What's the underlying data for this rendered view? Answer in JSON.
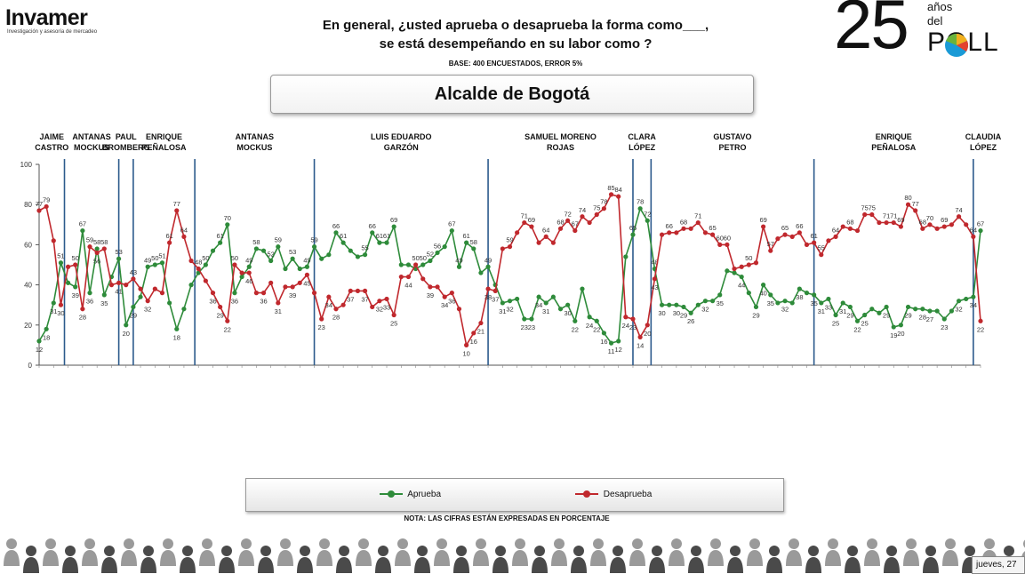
{
  "header": {
    "logo_text": "Invamer",
    "logo_tagline": "Investigación y asesoría de mercadeo",
    "title_line1": "En general, ¿usted aprueba o desaprueba la forma como___,",
    "title_line2": "se está desempeñando en su labor como ?",
    "base": "BASE: 400 ENCUESTADOS, ERROR 5%",
    "subject": "Alcalde de Bogotá",
    "anniversary_number": "25",
    "anniversary_word1": "años",
    "anniversary_word2": "del",
    "anniversary_word3": "POLL"
  },
  "mayors": [
    {
      "name": "JAIME\nCASTRO",
      "start": 0
    },
    {
      "name": "ANTANAS\nMOCKUS",
      "start": 7
    },
    {
      "name": "PAUL\nBROMBERG",
      "start": 22
    },
    {
      "name": "ENRIQUE\nPEÑALOSA",
      "start": 26
    },
    {
      "name": "ANTANAS\nMOCKUS",
      "start": 43
    },
    {
      "name": "LUIS EDUARDO\nGARZÓN",
      "start": 76
    },
    {
      "name": "SAMUEL MORENO\nROJAS",
      "start": 124
    },
    {
      "name": "CLARA\nLÓPEZ",
      "start": 164
    },
    {
      "name": "GUSTAVO\nPETRO",
      "start": 169
    },
    {
      "name": "ENRIQUE\nPEÑALOSA",
      "start": 214
    },
    {
      "name": "CLAUDIA\nLÓPEZ",
      "start": 258
    }
  ],
  "chart_data": {
    "type": "line",
    "ylim": [
      0,
      100
    ],
    "yticks": [
      0,
      20,
      40,
      60,
      80,
      100
    ],
    "x_count": 260,
    "series": [
      {
        "name": "Aprueba",
        "color": "#2e8b3a",
        "points": [
          [
            0,
            12
          ],
          [
            2,
            18
          ],
          [
            4,
            31
          ],
          [
            6,
            51
          ],
          [
            8,
            41
          ],
          [
            10,
            39
          ],
          [
            12,
            67
          ],
          [
            14,
            36
          ],
          [
            16,
            58
          ],
          [
            18,
            35
          ],
          [
            20,
            44
          ],
          [
            22,
            53
          ],
          [
            24,
            20
          ],
          [
            26,
            29
          ],
          [
            28,
            34
          ],
          [
            30,
            49
          ],
          [
            32,
            50
          ],
          [
            34,
            51
          ],
          [
            36,
            31
          ],
          [
            38,
            18
          ],
          [
            40,
            28
          ],
          [
            42,
            40
          ],
          [
            44,
            46
          ],
          [
            46,
            50
          ],
          [
            48,
            57
          ],
          [
            50,
            61
          ],
          [
            52,
            70
          ],
          [
            54,
            36
          ],
          [
            56,
            44
          ],
          [
            58,
            49
          ],
          [
            60,
            58
          ],
          [
            62,
            57
          ],
          [
            64,
            52
          ],
          [
            66,
            59
          ],
          [
            68,
            48
          ],
          [
            70,
            53
          ],
          [
            72,
            48
          ],
          [
            74,
            49
          ],
          [
            76,
            59
          ],
          [
            78,
            53
          ],
          [
            80,
            55
          ],
          [
            82,
            66
          ],
          [
            84,
            61
          ],
          [
            86,
            57
          ],
          [
            88,
            54
          ],
          [
            90,
            55
          ],
          [
            92,
            66
          ],
          [
            94,
            61
          ],
          [
            96,
            61
          ],
          [
            98,
            69
          ],
          [
            100,
            50
          ],
          [
            102,
            50
          ],
          [
            104,
            48
          ],
          [
            106,
            50
          ],
          [
            108,
            52
          ],
          [
            110,
            56
          ],
          [
            112,
            59
          ],
          [
            114,
            67
          ],
          [
            116,
            49
          ],
          [
            118,
            61
          ],
          [
            120,
            58
          ],
          [
            122,
            46
          ],
          [
            124,
            49
          ],
          [
            126,
            40
          ],
          [
            128,
            31
          ],
          [
            130,
            32
          ],
          [
            132,
            33
          ],
          [
            134,
            23
          ],
          [
            136,
            23
          ],
          [
            138,
            34
          ],
          [
            140,
            31
          ],
          [
            142,
            34
          ],
          [
            144,
            28
          ],
          [
            146,
            30
          ],
          [
            148,
            22
          ],
          [
            150,
            38
          ],
          [
            152,
            24
          ],
          [
            154,
            22
          ],
          [
            156,
            16
          ],
          [
            158,
            11
          ],
          [
            160,
            12
          ],
          [
            162,
            54
          ],
          [
            164,
            65
          ],
          [
            166,
            78
          ],
          [
            168,
            72
          ],
          [
            170,
            48
          ],
          [
            172,
            30
          ],
          [
            174,
            30
          ],
          [
            176,
            30
          ],
          [
            178,
            29
          ],
          [
            180,
            26
          ],
          [
            182,
            30
          ],
          [
            184,
            32
          ],
          [
            186,
            32
          ],
          [
            188,
            35
          ],
          [
            190,
            47
          ],
          [
            192,
            46
          ],
          [
            194,
            44
          ],
          [
            196,
            36
          ],
          [
            198,
            29
          ],
          [
            200,
            40
          ],
          [
            202,
            35
          ],
          [
            204,
            31
          ],
          [
            206,
            32
          ],
          [
            208,
            31
          ],
          [
            210,
            38
          ],
          [
            212,
            36
          ],
          [
            214,
            35
          ],
          [
            216,
            31
          ],
          [
            218,
            33
          ],
          [
            220,
            25
          ],
          [
            222,
            31
          ],
          [
            224,
            29
          ],
          [
            226,
            22
          ],
          [
            228,
            25
          ],
          [
            230,
            28
          ],
          [
            232,
            26
          ],
          [
            234,
            29
          ],
          [
            236,
            19
          ],
          [
            238,
            20
          ],
          [
            240,
            29
          ],
          [
            242,
            28
          ],
          [
            244,
            28
          ],
          [
            246,
            27
          ],
          [
            248,
            27
          ],
          [
            250,
            23
          ],
          [
            252,
            27
          ],
          [
            254,
            32
          ],
          [
            256,
            33
          ],
          [
            258,
            34
          ],
          [
            260,
            67
          ]
        ]
      },
      {
        "name": "Desaprueba",
        "color": "#c0282d",
        "points": [
          [
            0,
            77
          ],
          [
            2,
            79
          ],
          [
            4,
            62
          ],
          [
            6,
            30
          ],
          [
            8,
            49
          ],
          [
            10,
            50
          ],
          [
            12,
            28
          ],
          [
            14,
            59
          ],
          [
            16,
            56
          ],
          [
            18,
            58
          ],
          [
            20,
            40
          ],
          [
            22,
            41
          ],
          [
            24,
            40
          ],
          [
            26,
            43
          ],
          [
            28,
            38
          ],
          [
            30,
            32
          ],
          [
            32,
            38
          ],
          [
            34,
            36
          ],
          [
            36,
            61
          ],
          [
            38,
            77
          ],
          [
            40,
            64
          ],
          [
            42,
            52
          ],
          [
            44,
            48
          ],
          [
            46,
            42
          ],
          [
            48,
            36
          ],
          [
            50,
            29
          ],
          [
            52,
            22
          ],
          [
            54,
            50
          ],
          [
            56,
            46
          ],
          [
            58,
            46
          ],
          [
            60,
            36
          ],
          [
            62,
            36
          ],
          [
            64,
            41
          ],
          [
            66,
            31
          ],
          [
            68,
            39
          ],
          [
            70,
            39
          ],
          [
            72,
            41
          ],
          [
            74,
            45
          ],
          [
            76,
            36
          ],
          [
            78,
            23
          ],
          [
            80,
            34
          ],
          [
            82,
            28
          ],
          [
            84,
            30
          ],
          [
            86,
            37
          ],
          [
            88,
            37
          ],
          [
            90,
            37
          ],
          [
            92,
            29
          ],
          [
            94,
            32
          ],
          [
            96,
            33
          ],
          [
            98,
            25
          ],
          [
            100,
            44
          ],
          [
            102,
            44
          ],
          [
            104,
            50
          ],
          [
            106,
            43
          ],
          [
            108,
            39
          ],
          [
            110,
            39
          ],
          [
            112,
            34
          ],
          [
            114,
            36
          ],
          [
            116,
            28
          ],
          [
            118,
            10
          ],
          [
            120,
            16
          ],
          [
            122,
            21
          ],
          [
            124,
            38
          ],
          [
            126,
            37
          ],
          [
            128,
            58
          ],
          [
            130,
            59
          ],
          [
            132,
            66
          ],
          [
            134,
            71
          ],
          [
            136,
            69
          ],
          [
            138,
            61
          ],
          [
            140,
            64
          ],
          [
            142,
            61
          ],
          [
            144,
            68
          ],
          [
            146,
            72
          ],
          [
            148,
            67
          ],
          [
            150,
            74
          ],
          [
            152,
            71
          ],
          [
            154,
            75
          ],
          [
            156,
            78
          ],
          [
            158,
            85
          ],
          [
            160,
            84
          ],
          [
            162,
            24
          ],
          [
            164,
            23
          ],
          [
            166,
            14
          ],
          [
            168,
            20
          ],
          [
            170,
            43
          ],
          [
            172,
            65
          ],
          [
            174,
            66
          ],
          [
            176,
            66
          ],
          [
            178,
            68
          ],
          [
            180,
            68
          ],
          [
            182,
            71
          ],
          [
            184,
            66
          ],
          [
            186,
            65
          ],
          [
            188,
            60
          ],
          [
            190,
            60
          ],
          [
            192,
            48
          ],
          [
            194,
            49
          ],
          [
            196,
            50
          ],
          [
            198,
            51
          ],
          [
            200,
            69
          ],
          [
            202,
            57
          ],
          [
            204,
            63
          ],
          [
            206,
            65
          ],
          [
            208,
            64
          ],
          [
            210,
            66
          ],
          [
            212,
            60
          ],
          [
            214,
            61
          ],
          [
            216,
            55
          ],
          [
            218,
            62
          ],
          [
            220,
            64
          ],
          [
            222,
            69
          ],
          [
            224,
            68
          ],
          [
            226,
            67
          ],
          [
            228,
            75
          ],
          [
            230,
            75
          ],
          [
            232,
            71
          ],
          [
            234,
            71
          ],
          [
            236,
            71
          ],
          [
            238,
            69
          ],
          [
            240,
            80
          ],
          [
            242,
            77
          ],
          [
            244,
            68
          ],
          [
            246,
            70
          ],
          [
            248,
            68
          ],
          [
            250,
            69
          ],
          [
            252,
            70
          ],
          [
            254,
            74
          ],
          [
            256,
            70
          ],
          [
            258,
            64
          ],
          [
            260,
            22
          ]
        ]
      }
    ],
    "labeled_points": {
      "Aprueba": [
        0,
        2,
        4,
        6,
        10,
        12,
        14,
        16,
        18,
        22,
        24,
        26,
        30,
        32,
        34,
        38,
        46,
        50,
        52,
        54,
        58,
        60,
        64,
        66,
        70,
        74,
        76,
        82,
        84,
        90,
        92,
        94,
        96,
        98,
        106,
        108,
        110,
        114,
        116,
        118,
        120,
        124,
        128,
        130,
        134,
        136,
        138,
        140,
        146,
        148,
        152,
        154,
        156,
        158,
        160,
        164,
        166,
        168,
        170,
        172,
        176,
        178,
        180,
        184,
        188,
        194,
        198,
        200,
        202,
        206,
        210,
        214,
        216,
        218,
        220,
        222,
        224,
        226,
        228,
        234,
        236,
        238,
        240,
        244,
        246,
        250,
        254,
        258,
        260
      ],
      "Desaprueba": [
        0,
        2,
        6,
        10,
        12,
        14,
        16,
        18,
        22,
        26,
        30,
        36,
        38,
        40,
        44,
        48,
        50,
        52,
        54,
        58,
        62,
        66,
        70,
        74,
        78,
        80,
        82,
        86,
        90,
        94,
        96,
        98,
        102,
        104,
        108,
        112,
        114,
        118,
        120,
        122,
        124,
        126,
        130,
        134,
        136,
        140,
        144,
        146,
        148,
        150,
        154,
        156,
        158,
        160,
        162,
        164,
        166,
        168,
        170,
        174,
        178,
        182,
        186,
        188,
        190,
        196,
        200,
        202,
        206,
        210,
        214,
        216,
        220,
        224,
        228,
        230,
        234,
        236,
        238,
        240,
        242,
        244,
        246,
        250,
        254,
        258,
        260
      ]
    }
  },
  "legend": {
    "aprueba": "Aprueba",
    "desaprueba": "Desaprueba"
  },
  "note": "NOTA: LAS CIFRAS ESTÁN EXPRESADAS EN PORCENTAJE",
  "footer": {
    "date_chip": "jueves, 27"
  }
}
